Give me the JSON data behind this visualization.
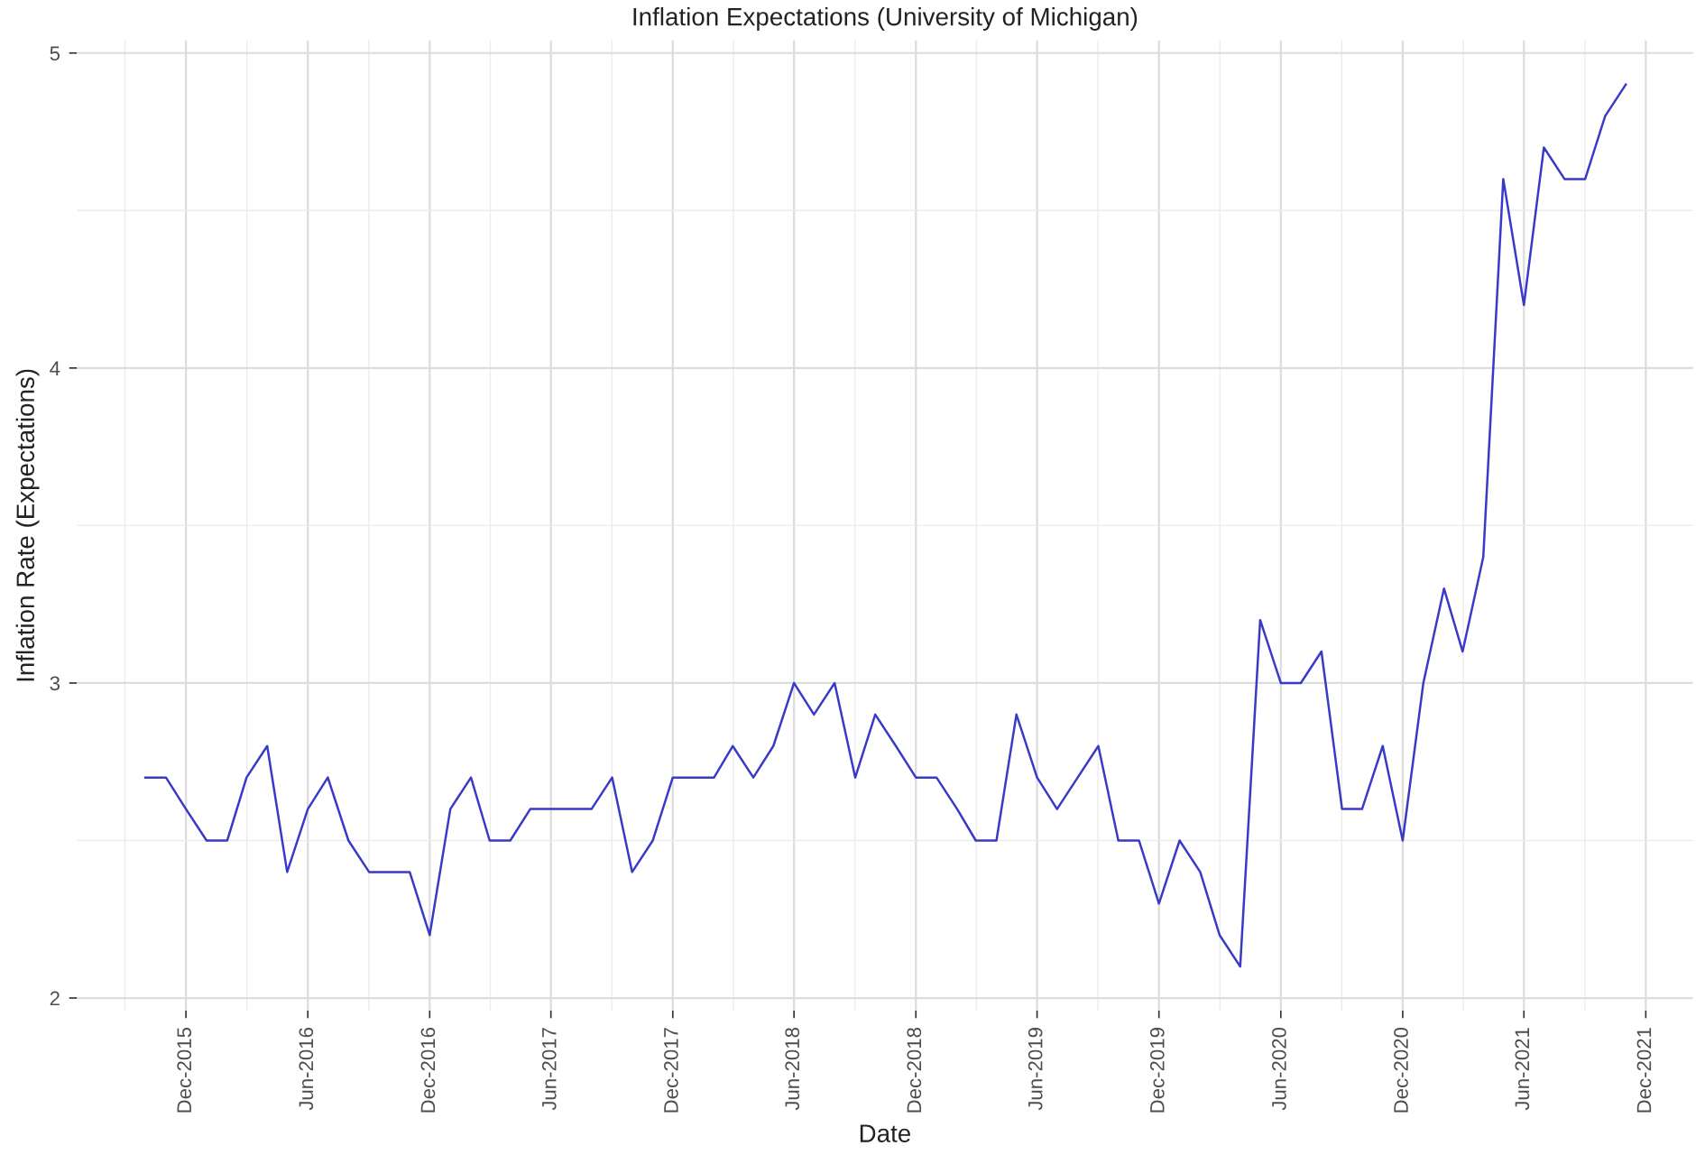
{
  "chart_data": {
    "type": "line",
    "title": "Inflation Expectations (University of Michigan)",
    "xlabel": "Date",
    "ylabel": "Inflation Rate (Expectations)",
    "x": [
      "2015-10",
      "2015-11",
      "2015-12",
      "2016-01",
      "2016-02",
      "2016-03",
      "2016-04",
      "2016-05",
      "2016-06",
      "2016-07",
      "2016-08",
      "2016-09",
      "2016-10",
      "2016-11",
      "2016-12",
      "2017-01",
      "2017-02",
      "2017-03",
      "2017-04",
      "2017-05",
      "2017-06",
      "2017-07",
      "2017-08",
      "2017-09",
      "2017-10",
      "2017-11",
      "2017-12",
      "2018-01",
      "2018-02",
      "2018-03",
      "2018-04",
      "2018-05",
      "2018-06",
      "2018-07",
      "2018-08",
      "2018-09",
      "2018-10",
      "2018-11",
      "2018-12",
      "2019-01",
      "2019-02",
      "2019-03",
      "2019-04",
      "2019-05",
      "2019-06",
      "2019-07",
      "2019-08",
      "2019-09",
      "2019-10",
      "2019-11",
      "2019-12",
      "2020-01",
      "2020-02",
      "2020-03",
      "2020-04",
      "2020-05",
      "2020-06",
      "2020-07",
      "2020-08",
      "2020-09",
      "2020-10",
      "2020-11",
      "2020-12",
      "2021-01",
      "2021-02",
      "2021-03",
      "2021-04",
      "2021-05",
      "2021-06",
      "2021-07",
      "2021-08",
      "2021-09",
      "2021-10",
      "2021-11"
    ],
    "series": [
      {
        "color": "#3a3ac8",
        "values": [
          2.7,
          2.7,
          2.6,
          2.5,
          2.5,
          2.7,
          2.8,
          2.4,
          2.6,
          2.7,
          2.5,
          2.4,
          2.4,
          2.4,
          2.2,
          2.6,
          2.7,
          2.5,
          2.5,
          2.6,
          2.6,
          2.6,
          2.6,
          2.7,
          2.4,
          2.5,
          2.7,
          2.7,
          2.7,
          2.8,
          2.7,
          2.8,
          3.0,
          2.9,
          3.0,
          2.7,
          2.9,
          2.8,
          2.7,
          2.7,
          2.6,
          2.5,
          2.5,
          2.9,
          2.7,
          2.6,
          2.7,
          2.8,
          2.5,
          2.5,
          2.3,
          2.5,
          2.4,
          2.2,
          2.1,
          3.2,
          3.0,
          3.0,
          3.1,
          2.6,
          2.6,
          2.8,
          2.5,
          3.0,
          3.3,
          3.1,
          3.4,
          4.6,
          4.2,
          4.7,
          4.6,
          4.6,
          4.8,
          4.9
        ]
      }
    ],
    "xlim": [
      "2015-06-20",
      "2022-02-10"
    ],
    "xticks": [
      {
        "value": "2015-12-01",
        "label": "Dec-2015"
      },
      {
        "value": "2016-06-01",
        "label": "Jun-2016"
      },
      {
        "value": "2016-12-01",
        "label": "Dec-2016"
      },
      {
        "value": "2017-06-01",
        "label": "Jun-2017"
      },
      {
        "value": "2017-12-01",
        "label": "Dec-2017"
      },
      {
        "value": "2018-06-01",
        "label": "Jun-2018"
      },
      {
        "value": "2018-12-01",
        "label": "Dec-2018"
      },
      {
        "value": "2019-06-01",
        "label": "Jun-2019"
      },
      {
        "value": "2019-12-01",
        "label": "Dec-2019"
      },
      {
        "value": "2020-06-01",
        "label": "Jun-2020"
      },
      {
        "value": "2020-12-01",
        "label": "Dec-2020"
      },
      {
        "value": "2021-06-01",
        "label": "Jun-2021"
      },
      {
        "value": "2021-12-01",
        "label": "Dec-2021"
      }
    ],
    "ylim": [
      1.96,
      5.04
    ],
    "yticks": [
      2,
      3,
      4,
      5
    ],
    "grid": true,
    "marker": "none",
    "line_style": "solid"
  }
}
